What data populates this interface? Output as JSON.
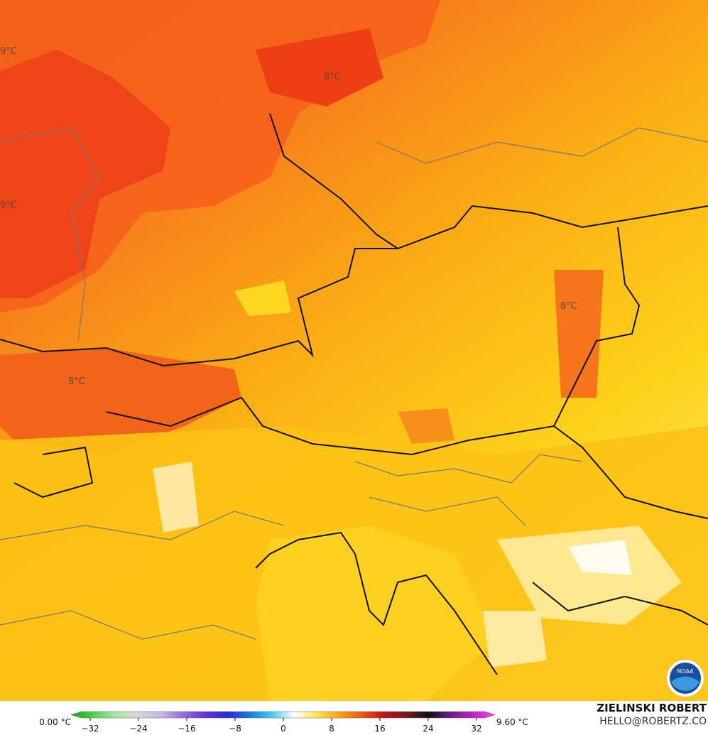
{
  "map": {
    "contour_labels": [
      "9°C",
      "8°C",
      "9°C",
      "8°C",
      "8°C"
    ]
  },
  "colorbar": {
    "min_label": "0.00 °C",
    "max_label": "9.60 °C",
    "lim": [
      -36,
      36
    ],
    "ticks": [
      {
        "value": -32,
        "label": "−32"
      },
      {
        "value": -24,
        "label": "−24"
      },
      {
        "value": -16,
        "label": "−16"
      },
      {
        "value": -8,
        "label": "−8"
      },
      0,
      8,
      16,
      24,
      32
    ],
    "colors": [
      "#11a511",
      "#4fd24f",
      "#a8e8a8",
      "#d8d8d8",
      "#c8b8e8",
      "#9a70e0",
      "#6a2fd8",
      "#2a2ad8",
      "#1a7ae0",
      "#3ad0f0",
      "#ffffff",
      "#fde84a",
      "#f9a51a",
      "#f05a14",
      "#c81010",
      "#7a1a1a",
      "#101010",
      "#6a1a8a",
      "#c020c0",
      "#ff40ff"
    ]
  },
  "credit": {
    "author": "ZIELINSKI ROBERT",
    "email": "HELLO@ROBERTZ.CO"
  },
  "logo": "NOAA"
}
